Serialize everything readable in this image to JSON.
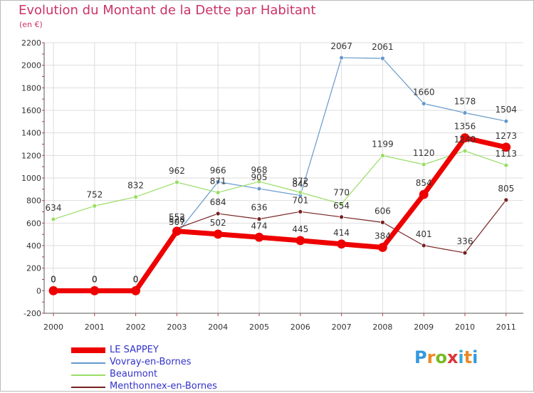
{
  "title": "Evolution du Montant de la Dette par Habitant",
  "unit_label": "(en €)",
  "logo": {
    "text": "Proxiti",
    "colors": [
      "#3399dd",
      "#ee8822",
      "#77bb22",
      "#dd3333",
      "#33aadd",
      "#ee8822",
      "#3399dd"
    ]
  },
  "chart_data": {
    "type": "line",
    "x": [
      "2000",
      "2001",
      "2002",
      "2003",
      "2004",
      "2005",
      "2006",
      "2007",
      "2008",
      "2009",
      "2010",
      "2011"
    ],
    "ylim": [
      -200,
      2200
    ],
    "yticks": [
      "-200",
      "0",
      "200",
      "400",
      "600",
      "800",
      "1000",
      "1200",
      "1400",
      "1600",
      "1800",
      "2000",
      "2200"
    ],
    "grid": true,
    "legend_position": "bottom-left",
    "series": [
      {
        "name": "Vovray-en-Bornes",
        "color": "#6699cc",
        "values": [
          0,
          0,
          0,
          507,
          966,
          905,
          845,
          2067,
          2061,
          1660,
          1578,
          1504
        ],
        "labels": [
          "0",
          "0",
          "0",
          "507",
          "966",
          "905",
          "845",
          "2067",
          "2061",
          "1660",
          "1578",
          "1504"
        ]
      },
      {
        "name": "Beaumont",
        "color": "#99dd66",
        "values": [
          634,
          752,
          832,
          962,
          871,
          968,
          872,
          770,
          1199,
          1120,
          1240,
          1113
        ],
        "labels": [
          "634",
          "752",
          "832",
          "962",
          "871",
          "968",
          "872",
          "770",
          "1199",
          "1120",
          "1240",
          "1113"
        ]
      },
      {
        "name": "Menthonnex-en-Bornes",
        "color": "#772222",
        "values": [
          0,
          0,
          0,
          552,
          684,
          636,
          701,
          654,
          606,
          401,
          336,
          805
        ],
        "labels": [
          "0",
          "0",
          "0",
          "552",
          "684",
          "636",
          "701",
          "654",
          "606",
          "401",
          "336",
          "805"
        ]
      },
      {
        "name": "LE SAPPEY",
        "color": "#ee0000",
        "values": [
          0,
          0,
          0,
          528,
          502,
          474,
          445,
          414,
          384,
          854,
          1356,
          1273
        ],
        "labels": [
          "0",
          "0",
          "0",
          "528",
          "502",
          "474",
          "445",
          "414",
          "384",
          "854",
          "1356",
          "1273"
        ]
      }
    ]
  },
  "legend": [
    {
      "name": "LE SAPPEY",
      "color": "#ee0000",
      "thick": true
    },
    {
      "name": "Vovray-en-Bornes",
      "color": "#6699cc",
      "thick": false
    },
    {
      "name": "Beaumont",
      "color": "#99dd66",
      "thick": false
    },
    {
      "name": "Menthonnex-en-Bornes",
      "color": "#772222",
      "thick": false
    }
  ]
}
